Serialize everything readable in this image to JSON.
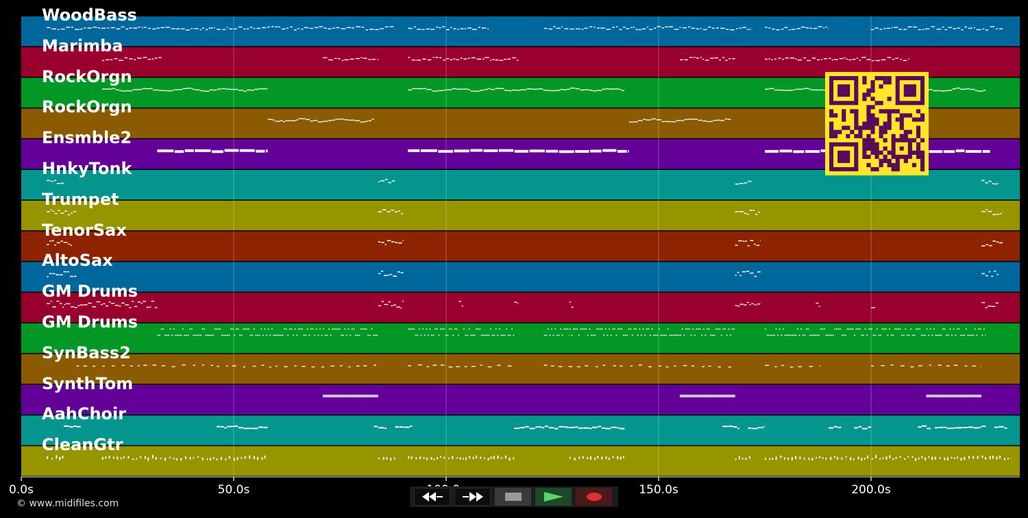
{
  "time_axis": {
    "min_s": 0,
    "max_s": 235,
    "ticks": [
      {
        "value": 0,
        "label": "0.0s"
      },
      {
        "value": 50,
        "label": "50.0s"
      },
      {
        "value": 100,
        "label": "100.0s"
      },
      {
        "value": 150,
        "label": "150.0s"
      },
      {
        "value": 200,
        "label": "200.0s"
      }
    ]
  },
  "tracks": [
    {
      "name": "WoodBass",
      "color": "#00679c",
      "pattern": "melodic",
      "segments": [
        [
          6,
          88
        ],
        [
          91,
          110
        ],
        [
          123,
          172
        ],
        [
          175,
          190
        ],
        [
          200,
          231
        ]
      ]
    },
    {
      "name": "Marimba",
      "color": "#99002e",
      "pattern": "melodic",
      "segments": [
        [
          19,
          33
        ],
        [
          71,
          84
        ],
        [
          91,
          117
        ],
        [
          155,
          168
        ],
        [
          175,
          209
        ]
      ]
    },
    {
      "name": "RockOrgn",
      "color": "#039826",
      "pattern": "line",
      "segments": [
        [
          19,
          58
        ],
        [
          91,
          142
        ],
        [
          175,
          227
        ]
      ]
    },
    {
      "name": "RockOrgn",
      "color": "#8c5a00",
      "pattern": "line",
      "segments": [
        [
          58,
          83
        ],
        [
          143,
          167
        ]
      ]
    },
    {
      "name": "Ensmble2",
      "color": "#630098",
      "pattern": "blocks",
      "segments": [
        [
          32,
          58
        ],
        [
          91,
          143
        ],
        [
          175,
          228
        ]
      ]
    },
    {
      "name": "HnkyTonk",
      "color": "#03958e",
      "pattern": "cluster",
      "segments": [
        [
          6,
          10
        ],
        [
          84,
          88
        ],
        [
          168,
          172
        ],
        [
          226,
          230
        ]
      ]
    },
    {
      "name": "Trumpet",
      "color": "#969500",
      "pattern": "cluster",
      "segments": [
        [
          6,
          13
        ],
        [
          84,
          90
        ],
        [
          168,
          174
        ],
        [
          226,
          231
        ]
      ]
    },
    {
      "name": "TenorSax",
      "color": "#8e2301",
      "pattern": "cluster",
      "segments": [
        [
          6,
          12
        ],
        [
          84,
          90
        ],
        [
          168,
          174
        ],
        [
          226,
          231
        ]
      ]
    },
    {
      "name": "AltoSax",
      "color": "#00679c",
      "pattern": "cluster",
      "segments": [
        [
          6,
          13
        ],
        [
          84,
          90
        ],
        [
          168,
          174
        ],
        [
          226,
          230
        ]
      ]
    },
    {
      "name": "GM Drums",
      "color": "#99002e",
      "pattern": "drums",
      "segments": [
        [
          6,
          32
        ],
        [
          84,
          90
        ],
        [
          103,
          104
        ],
        [
          116,
          117
        ],
        [
          129,
          130
        ],
        [
          168,
          174
        ],
        [
          187,
          188
        ],
        [
          200,
          201
        ],
        [
          226,
          230
        ]
      ]
    },
    {
      "name": "GM Drums",
      "color": "#039826",
      "pattern": "drums2",
      "segments": [
        [
          32,
          84
        ],
        [
          91,
          103
        ],
        [
          104,
          116
        ],
        [
          123,
          129
        ],
        [
          129,
          168
        ],
        [
          175,
          188
        ],
        [
          188,
          200
        ],
        [
          200,
          227
        ]
      ]
    },
    {
      "name": "SynBass2",
      "color": "#8c5a00",
      "pattern": "sparse",
      "segments": [
        [
          13,
          84
        ],
        [
          91,
          116
        ],
        [
          123,
          168
        ],
        [
          175,
          188
        ],
        [
          200,
          226
        ]
      ]
    },
    {
      "name": "SynthTom",
      "color": "#630098",
      "pattern": "tight",
      "segments": [
        [
          71,
          84
        ],
        [
          155,
          168
        ],
        [
          213,
          226
        ]
      ]
    },
    {
      "name": "AahChoir",
      "color": "#03958e",
      "pattern": "choir",
      "segments": [
        [
          10,
          14
        ],
        [
          46,
          58
        ],
        [
          83,
          86
        ],
        [
          88,
          92
        ],
        [
          116,
          142
        ],
        [
          165,
          169
        ],
        [
          171,
          175
        ],
        [
          190,
          193
        ],
        [
          196,
          200
        ],
        [
          211,
          214
        ],
        [
          215,
          227
        ],
        [
          229,
          232
        ]
      ]
    },
    {
      "name": "CleanGtr",
      "color": "#969500",
      "pattern": "guitar",
      "segments": [
        [
          6,
          10
        ],
        [
          19,
          58
        ],
        [
          84,
          88
        ],
        [
          91,
          116
        ],
        [
          129,
          142
        ],
        [
          168,
          172
        ],
        [
          175,
          233
        ]
      ]
    }
  ],
  "qr": {
    "fg": "#ffe629",
    "bg": "#5b0a5a"
  },
  "copyright": "© www.midifiles.com",
  "transport": {
    "rewind_icon": "rewind-icon",
    "fast_forward_icon": "fast-forward-icon",
    "stop_icon": "stop-icon",
    "play_icon": "play-icon",
    "record_icon": "record-icon"
  }
}
